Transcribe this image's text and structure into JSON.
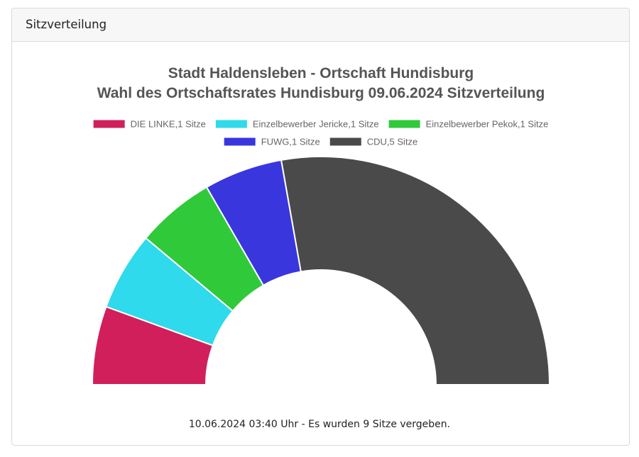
{
  "card": {
    "header_title": "Sitzverteilung"
  },
  "chart_data": {
    "type": "pie",
    "variant": "half-donut",
    "title": [
      "Stadt Haldensleben - Ortschaft Hundisburg",
      "Wahl des Ortschaftsrates Hundisburg 09.06.2024 Sitzverteilung"
    ],
    "legend_position": "top",
    "series": [
      {
        "name": "DIE LINKE",
        "legend": "DIE LINKE,1 Sitze",
        "value": 1,
        "color": "#d11f5b"
      },
      {
        "name": "Einzelbewerber Jericke",
        "legend": "Einzelbewerber Jericke,1 Sitze",
        "value": 1,
        "color": "#2edaeb"
      },
      {
        "name": "Einzelbewerber Pekok",
        "legend": "Einzelbewerber Pekok,1 Sitze",
        "value": 1,
        "color": "#30c93a"
      },
      {
        "name": "FUWG",
        "legend": "FUWG,1 Sitze",
        "value": 1,
        "color": "#3936de"
      },
      {
        "name": "CDU",
        "legend": "CDU,5 Sitze",
        "value": 5,
        "color": "#4a4a4a"
      }
    ]
  },
  "footer": {
    "text": "10.06.2024 03:40 Uhr - Es wurden 9 Sitze vergeben."
  }
}
